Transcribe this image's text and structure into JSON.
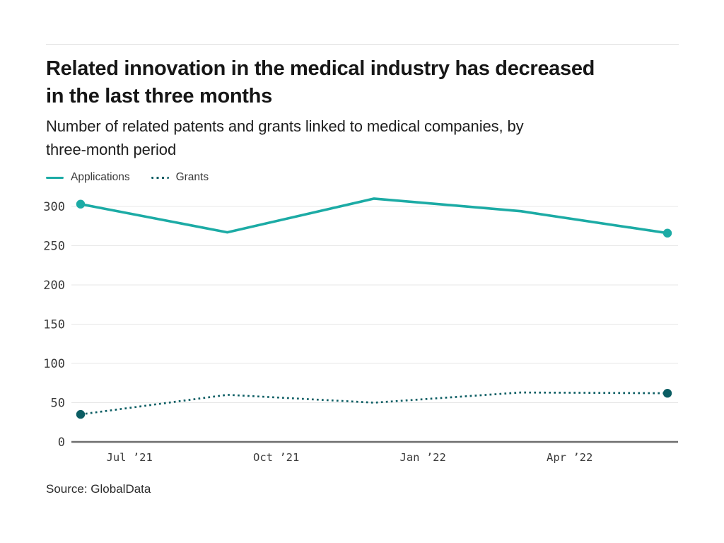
{
  "header": {
    "title": "Related innovation in the medical industry has decreased in the last three months",
    "title_lines": [
      "Related innovation in the medical industry has decreased",
      "in the last three months"
    ],
    "subtitle": "Number of related patents and grants linked to medical companies, by three-month period",
    "subtitle_lines": [
      "Number of related patents and grants linked to medical companies, by",
      "three-month period"
    ]
  },
  "legend": {
    "position": "top-left",
    "items": [
      {
        "label": "Applications",
        "swatch": "solid-line"
      },
      {
        "label": "Grants",
        "swatch": "dotted-line"
      }
    ]
  },
  "source": "Source: GlobalData",
  "colors": {
    "applications": "#1caba5",
    "grants": "#0b5d63",
    "grid": "#e7e7e7",
    "axis": "#6e6e6e",
    "tick_label": "#3b3b3b",
    "title_text": "#161616",
    "rule": "#dcdcdc",
    "background": "#ffffff"
  },
  "chart_data": {
    "type": "line",
    "title": "Related innovation in the medical industry has decreased in the last three months",
    "subtitle": "Number of related patents and grants linked to medical companies, by three-month period",
    "x_tick_labels": [
      "Jul ’21",
      "Oct ’21",
      "Jan ’22",
      "Apr ’22"
    ],
    "x_tick_month_offsets": [
      1,
      4,
      7,
      10
    ],
    "x_span_months": 12,
    "n_points": 5,
    "y_ticks": [
      0,
      50,
      100,
      150,
      200,
      250,
      300
    ],
    "ylim": [
      0,
      300
    ],
    "grid": "horizontal-only",
    "legend_position": "top-left",
    "point_markers": "first-and-last",
    "series": [
      {
        "name": "Applications",
        "style": "solid",
        "color": "#1caba5",
        "values": [
          303,
          267,
          310,
          294,
          266
        ]
      },
      {
        "name": "Grants",
        "style": "dotted",
        "color": "#0b5d63",
        "values": [
          35,
          60,
          50,
          63,
          62
        ]
      }
    ],
    "source": "Source: GlobalData"
  }
}
